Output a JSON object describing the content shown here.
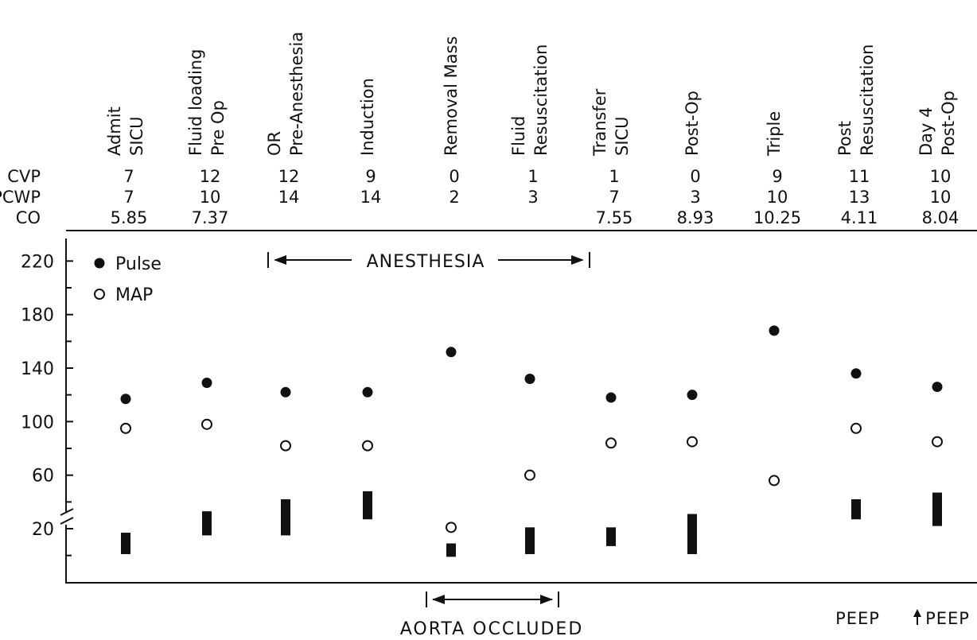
{
  "chart_data": {
    "type": "scatter",
    "categories": [
      [
        "Admit",
        "SICU"
      ],
      [
        "Fluid loading",
        "Pre Op"
      ],
      [
        "OR",
        "Pre-Anesthesia"
      ],
      [
        "Induction"
      ],
      [
        "Removal Mass"
      ],
      [
        "Fluid",
        "Resuscitation"
      ],
      [
        "Transfer",
        "SICU"
      ],
      [
        "Post-Op"
      ],
      [
        "Triple"
      ],
      [
        "Post",
        "Resuscitation"
      ],
      [
        "Day 4",
        "Post-Op"
      ]
    ],
    "table_rows": [
      {
        "label": "CVP",
        "values": [
          "7",
          "12",
          "12",
          "9",
          "0",
          "1",
          "1",
          "0",
          "9",
          "11",
          "10"
        ]
      },
      {
        "label": "PCWP",
        "values": [
          "7",
          "10",
          "14",
          "14",
          "2",
          "3",
          "7",
          "3",
          "10",
          "13",
          "10"
        ]
      },
      {
        "label": "CO",
        "values": [
          "5.85",
          "7.37",
          "",
          "",
          "",
          "",
          "7.55",
          "8.93",
          "10.25",
          "4.11",
          "8.04"
        ]
      }
    ],
    "y_ticks": [
      "220",
      "180",
      "140",
      "100",
      "60",
      "20"
    ],
    "ylim": [
      0,
      240
    ],
    "series": [
      {
        "name": "Pulse",
        "marker": "filled-circle",
        "values": [
          117,
          129,
          122,
          122,
          152,
          132,
          118,
          120,
          168,
          136,
          126
        ]
      },
      {
        "name": "MAP",
        "marker": "open-circle",
        "values": [
          95,
          98,
          82,
          82,
          21,
          60,
          84,
          85,
          56,
          95,
          85
        ]
      }
    ],
    "bars": [
      [
        1,
        17
      ],
      [
        15,
        33
      ],
      [
        15,
        42
      ],
      [
        27,
        48
      ],
      [
        -1,
        9
      ],
      [
        1,
        21
      ],
      [
        7,
        21
      ],
      [
        1,
        31
      ],
      null,
      [
        27,
        42
      ],
      [
        22,
        47
      ]
    ],
    "annotations": {
      "anesthesia": "ANESTHESIA",
      "aorta": "AORTA OCCLUDED",
      "peep_1": "PEEP",
      "peep_2": "PEEP"
    },
    "legend_position": "top-left"
  }
}
